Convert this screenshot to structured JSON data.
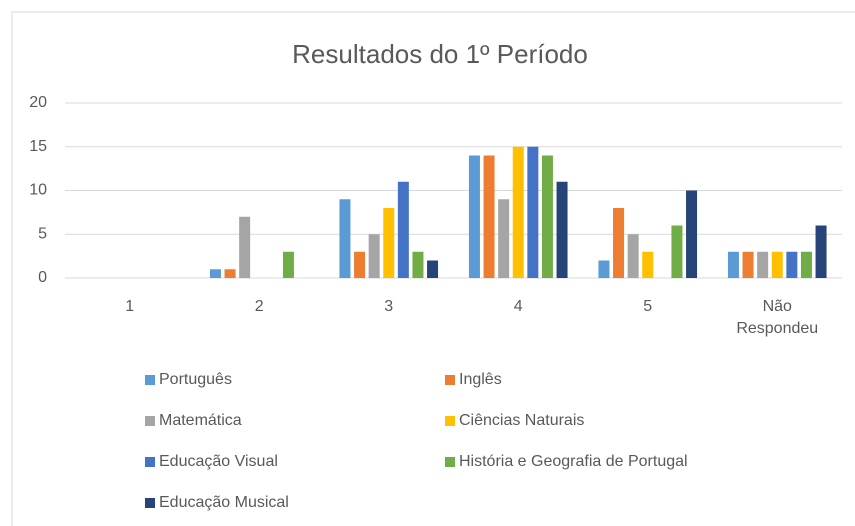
{
  "chart_data": {
    "type": "bar",
    "title": "Resultados do 1º Período",
    "categories": [
      "1",
      "2",
      "3",
      "4",
      "5",
      "Não Respondeu"
    ],
    "series": [
      {
        "name": "Português",
        "color": "#5b9bd5",
        "values": [
          0,
          1,
          9,
          14,
          2,
          3
        ]
      },
      {
        "name": "Inglês",
        "color": "#ed7d31",
        "values": [
          0,
          1,
          3,
          14,
          8,
          3
        ]
      },
      {
        "name": "Matemática",
        "color": "#a5a5a5",
        "values": [
          0,
          7,
          5,
          9,
          5,
          3
        ]
      },
      {
        "name": "Ciências Naturais",
        "color": "#ffc000",
        "values": [
          0,
          0,
          8,
          15,
          3,
          3
        ]
      },
      {
        "name": "Educação Visual",
        "color": "#4472c4",
        "values": [
          0,
          0,
          11,
          15,
          0,
          3
        ]
      },
      {
        "name": "História e Geografia de Portugal",
        "color": "#70ad47",
        "values": [
          0,
          3,
          3,
          14,
          6,
          3
        ]
      },
      {
        "name": "Educação Musical",
        "color": "#264478",
        "values": [
          0,
          0,
          2,
          11,
          10,
          6
        ]
      }
    ],
    "ylim": [
      0,
      20
    ],
    "yticks": [
      0,
      5,
      10,
      15,
      20
    ],
    "grid": true,
    "legend": "bottom"
  }
}
